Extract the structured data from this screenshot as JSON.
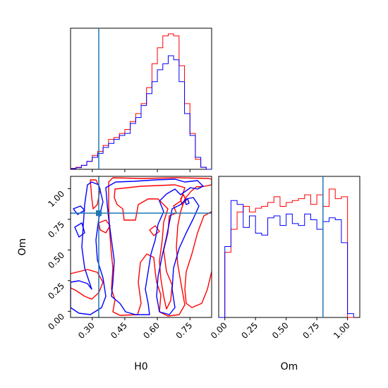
{
  "chart_data": {
    "type": "corner",
    "parameters": [
      "H0",
      "Om"
    ],
    "truth": {
      "H0": 0.33,
      "Om": 0.8
    },
    "colors": {
      "series_a": "#ff0000",
      "series_b": "#0000ff",
      "truth": "#1f77b4"
    },
    "h0_axis": {
      "label": "H0",
      "range": [
        0.2,
        0.85
      ],
      "ticks": [
        "0.30",
        "0.45",
        "0.60",
        "0.75"
      ],
      "tick_values": [
        0.3,
        0.45,
        0.6,
        0.75
      ]
    },
    "om_axis": {
      "label": "Om",
      "range": [
        -0.05,
        1.1
      ],
      "ticks": [
        "0.00",
        "0.25",
        "0.50",
        "0.75",
        "1.00"
      ],
      "tick_values": [
        0.0,
        0.25,
        0.5,
        0.75,
        1.0
      ]
    },
    "hist_h0": {
      "bin_edges": [
        0.2,
        0.225,
        0.25,
        0.275,
        0.3,
        0.325,
        0.35,
        0.375,
        0.4,
        0.425,
        0.45,
        0.475,
        0.5,
        0.525,
        0.55,
        0.575,
        0.6,
        0.625,
        0.65,
        0.675,
        0.7,
        0.725,
        0.75,
        0.775,
        0.8,
        0.825,
        0.85
      ],
      "series": [
        {
          "values": [
            0.5,
            1,
            2,
            4,
            7,
            9,
            12,
            15,
            16,
            18,
            20,
            24,
            28,
            33,
            41,
            53,
            61,
            67,
            68,
            67,
            52,
            33,
            18,
            5,
            1,
            0
          ]
        },
        {
          "values": [
            0.3,
            0.8,
            2,
            4,
            6,
            8,
            11,
            13,
            15,
            17,
            18,
            23,
            26,
            32,
            38,
            44,
            50,
            53,
            57,
            55,
            44,
            28,
            17,
            6,
            1,
            0
          ]
        }
      ]
    },
    "hist_om": {
      "bin_edges": [
        -0.05,
        0.0,
        0.05,
        0.1,
        0.15,
        0.2,
        0.25,
        0.3,
        0.35,
        0.4,
        0.45,
        0.5,
        0.55,
        0.6,
        0.65,
        0.7,
        0.75,
        0.8,
        0.85,
        0.9,
        0.95,
        1.0,
        1.05
      ],
      "series": [
        {
          "values": [
            0,
            34,
            46,
            55,
            58,
            55,
            57,
            58,
            60,
            63,
            58,
            60,
            61,
            62,
            64,
            59,
            64,
            58,
            67,
            62,
            63,
            0
          ]
        },
        {
          "values": [
            0,
            37,
            61,
            59,
            47,
            53,
            44,
            43,
            52,
            53,
            48,
            54,
            49,
            48,
            54,
            51,
            46,
            50,
            52,
            51,
            39,
            2
          ]
        }
      ]
    }
  }
}
